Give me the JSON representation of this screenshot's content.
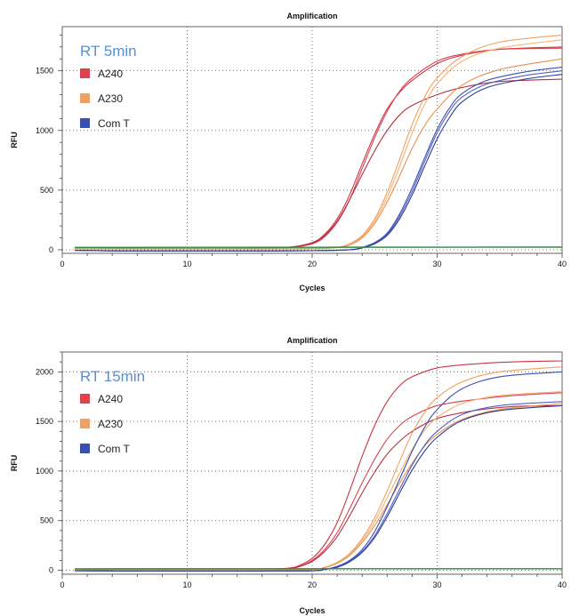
{
  "chart_data": [
    {
      "type": "line",
      "title": "Amplification",
      "xlabel": "Cycles",
      "ylabel": "RFU",
      "annotation": "RT 5min",
      "xlim": [
        0,
        40
      ],
      "ylim": [
        -30,
        1870
      ],
      "xticks": [
        0,
        10,
        20,
        30,
        40
      ],
      "yticks": [
        0,
        500,
        1000,
        1500
      ],
      "grid": "dotted",
      "legend_position": "top-left",
      "legend": [
        {
          "label": "A240",
          "color": "#e04050"
        },
        {
          "label": "A230",
          "color": "#f0a060"
        },
        {
          "label": "Com T",
          "color": "#3a4fb0"
        }
      ],
      "series": [
        {
          "group": "A240",
          "color": "#cc3344",
          "x": [
            1,
            5,
            10,
            15,
            18,
            20,
            21,
            22,
            23,
            24,
            25,
            26,
            27,
            28,
            30,
            32,
            35,
            40
          ],
          "y": [
            15,
            12,
            10,
            12,
            20,
            60,
            130,
            260,
            460,
            720,
            970,
            1180,
            1320,
            1420,
            1560,
            1630,
            1680,
            1700
          ]
        },
        {
          "group": "A240",
          "color": "#d84450",
          "x": [
            1,
            5,
            10,
            15,
            18,
            20,
            21,
            22,
            23,
            24,
            25,
            26,
            27,
            28,
            30,
            32,
            35,
            40
          ],
          "y": [
            15,
            12,
            10,
            12,
            18,
            50,
            110,
            230,
            420,
            680,
            940,
            1160,
            1330,
            1440,
            1580,
            1640,
            1680,
            1690
          ]
        },
        {
          "group": "A240",
          "color": "#b83040",
          "x": [
            1,
            5,
            10,
            15,
            18,
            20,
            21,
            22,
            23,
            24,
            25,
            26,
            27,
            28,
            30,
            32,
            35,
            40
          ],
          "y": [
            15,
            12,
            10,
            12,
            18,
            55,
            120,
            240,
            420,
            630,
            830,
            1000,
            1130,
            1210,
            1300,
            1360,
            1410,
            1430
          ]
        },
        {
          "group": "A230",
          "color": "#f0a060",
          "x": [
            1,
            5,
            10,
            15,
            20,
            22,
            23,
            24,
            25,
            26,
            27,
            28,
            29,
            30,
            32,
            35,
            40
          ],
          "y": [
            10,
            8,
            8,
            8,
            10,
            20,
            50,
            120,
            260,
            480,
            760,
            1050,
            1280,
            1440,
            1620,
            1740,
            1800
          ]
        },
        {
          "group": "A230",
          "color": "#f5b070",
          "x": [
            1,
            5,
            10,
            15,
            20,
            22,
            23,
            24,
            25,
            26,
            27,
            28,
            29,
            30,
            32,
            35,
            40
          ],
          "y": [
            10,
            8,
            8,
            8,
            10,
            18,
            45,
            110,
            240,
            440,
            700,
            980,
            1220,
            1390,
            1580,
            1690,
            1760
          ]
        },
        {
          "group": "A230",
          "color": "#e89050",
          "x": [
            1,
            5,
            10,
            15,
            20,
            22,
            23,
            24,
            25,
            26,
            27,
            28,
            29,
            30,
            32,
            35,
            40
          ],
          "y": [
            10,
            8,
            8,
            8,
            10,
            18,
            40,
            100,
            220,
            400,
            620,
            850,
            1040,
            1180,
            1380,
            1510,
            1600
          ]
        },
        {
          "group": "Com T",
          "color": "#3a4fb0",
          "x": [
            1,
            5,
            10,
            15,
            20,
            23,
            24,
            25,
            26,
            27,
            28,
            29,
            30,
            31,
            32,
            34,
            37,
            40
          ],
          "y": [
            -5,
            -10,
            -10,
            -10,
            -8,
            0,
            20,
            60,
            140,
            300,
            520,
            770,
            1010,
            1190,
            1310,
            1420,
            1490,
            1530
          ]
        },
        {
          "group": "Com T",
          "color": "#5060c0",
          "x": [
            1,
            5,
            10,
            15,
            20,
            23,
            24,
            25,
            26,
            27,
            28,
            29,
            30,
            31,
            32,
            34,
            37,
            40
          ],
          "y": [
            -5,
            -10,
            -10,
            -10,
            -8,
            0,
            18,
            55,
            130,
            280,
            490,
            740,
            980,
            1160,
            1280,
            1390,
            1460,
            1500
          ]
        },
        {
          "group": "Com T",
          "color": "#2a3a9a",
          "x": [
            1,
            5,
            10,
            15,
            20,
            23,
            24,
            25,
            26,
            27,
            28,
            29,
            30,
            31,
            32,
            34,
            37,
            40
          ],
          "y": [
            -5,
            -10,
            -10,
            -10,
            -8,
            0,
            15,
            50,
            120,
            260,
            460,
            700,
            930,
            1110,
            1240,
            1360,
            1430,
            1470
          ]
        },
        {
          "group": "baseline",
          "color": "#2e8b3a",
          "x": [
            1,
            40
          ],
          "y": [
            20,
            22
          ]
        }
      ]
    },
    {
      "type": "line",
      "title": "Amplification",
      "xlabel": "Cycles",
      "ylabel": "RFU",
      "annotation": "RT 15min",
      "xlim": [
        0,
        40
      ],
      "ylim": [
        -40,
        2200
      ],
      "xticks": [
        0,
        10,
        20,
        30,
        40
      ],
      "yticks": [
        0,
        500,
        1000,
        1500,
        2000
      ],
      "grid": "dotted",
      "legend_position": "top-left",
      "legend": [
        {
          "label": "A240",
          "color": "#e04050"
        },
        {
          "label": "A230",
          "color": "#f0a060"
        },
        {
          "label": "Com T",
          "color": "#3a4fb0"
        }
      ],
      "series": [
        {
          "group": "A240",
          "color": "#cc3344",
          "x": [
            1,
            5,
            10,
            15,
            18,
            19,
            20,
            21,
            22,
            23,
            24,
            25,
            26,
            27,
            28,
            30,
            33,
            36,
            40
          ],
          "y": [
            10,
            8,
            6,
            8,
            20,
            50,
            120,
            260,
            480,
            800,
            1150,
            1460,
            1700,
            1860,
            1950,
            2040,
            2080,
            2100,
            2110
          ]
        },
        {
          "group": "A240",
          "color": "#d84450",
          "x": [
            1,
            5,
            10,
            15,
            18,
            19,
            20,
            21,
            22,
            23,
            24,
            25,
            26,
            27,
            28,
            30,
            33,
            36,
            40
          ],
          "y": [
            10,
            8,
            6,
            8,
            18,
            40,
            100,
            210,
            380,
            620,
            880,
            1120,
            1320,
            1460,
            1550,
            1660,
            1720,
            1760,
            1790
          ]
        },
        {
          "group": "A240",
          "color": "#b83040",
          "x": [
            1,
            5,
            10,
            15,
            18,
            19,
            20,
            21,
            22,
            23,
            24,
            25,
            26,
            27,
            28,
            30,
            33,
            36,
            40
          ],
          "y": [
            10,
            8,
            6,
            8,
            18,
            38,
            90,
            190,
            340,
            550,
            780,
            990,
            1170,
            1300,
            1400,
            1530,
            1610,
            1650,
            1660
          ]
        },
        {
          "group": "A230",
          "color": "#f0a060",
          "x": [
            1,
            5,
            10,
            15,
            20,
            21,
            22,
            23,
            24,
            25,
            26,
            27,
            28,
            29,
            30,
            32,
            35,
            40
          ],
          "y": [
            8,
            6,
            6,
            6,
            10,
            30,
            80,
            170,
            320,
            530,
            800,
            1100,
            1380,
            1590,
            1740,
            1900,
            2000,
            2050
          ]
        },
        {
          "group": "A230",
          "color": "#f5b070",
          "x": [
            1,
            5,
            10,
            15,
            20,
            21,
            22,
            23,
            24,
            25,
            26,
            27,
            28,
            29,
            30,
            32,
            35,
            40
          ],
          "y": [
            8,
            6,
            6,
            6,
            10,
            28,
            75,
            160,
            300,
            490,
            730,
            980,
            1220,
            1410,
            1540,
            1680,
            1760,
            1800
          ]
        },
        {
          "group": "A230",
          "color": "#e89050",
          "x": [
            1,
            5,
            10,
            15,
            20,
            21,
            22,
            23,
            24,
            25,
            26,
            27,
            28,
            29,
            30,
            32,
            35,
            40
          ],
          "y": [
            8,
            6,
            6,
            6,
            10,
            26,
            70,
            150,
            280,
            450,
            660,
            880,
            1080,
            1250,
            1370,
            1520,
            1620,
            1680
          ]
        },
        {
          "group": "Com T",
          "color": "#3a4fb0",
          "x": [
            1,
            5,
            10,
            15,
            20,
            21,
            22,
            23,
            24,
            25,
            26,
            27,
            28,
            29,
            30,
            32,
            35,
            40
          ],
          "y": [
            -5,
            -8,
            -8,
            -8,
            -5,
            10,
            40,
            100,
            210,
            390,
            640,
            920,
            1200,
            1440,
            1620,
            1830,
            1950,
            2000
          ]
        },
        {
          "group": "Com T",
          "color": "#5060c0",
          "x": [
            1,
            5,
            10,
            15,
            20,
            21,
            22,
            23,
            24,
            25,
            26,
            27,
            28,
            29,
            30,
            32,
            35,
            40
          ],
          "y": [
            -5,
            -8,
            -8,
            -8,
            -5,
            8,
            35,
            90,
            190,
            350,
            570,
            820,
            1060,
            1260,
            1400,
            1570,
            1660,
            1700
          ]
        },
        {
          "group": "Com T",
          "color": "#2a3a9a",
          "x": [
            1,
            5,
            10,
            15,
            20,
            21,
            22,
            23,
            24,
            25,
            26,
            27,
            28,
            29,
            30,
            32,
            35,
            40
          ],
          "y": [
            -5,
            -8,
            -8,
            -8,
            -5,
            8,
            30,
            85,
            180,
            330,
            540,
            780,
            1010,
            1200,
            1340,
            1510,
            1610,
            1660
          ]
        },
        {
          "group": "baseline",
          "color": "#2e8b3a",
          "x": [
            1,
            40
          ],
          "y": [
            15,
            16
          ]
        }
      ]
    }
  ]
}
